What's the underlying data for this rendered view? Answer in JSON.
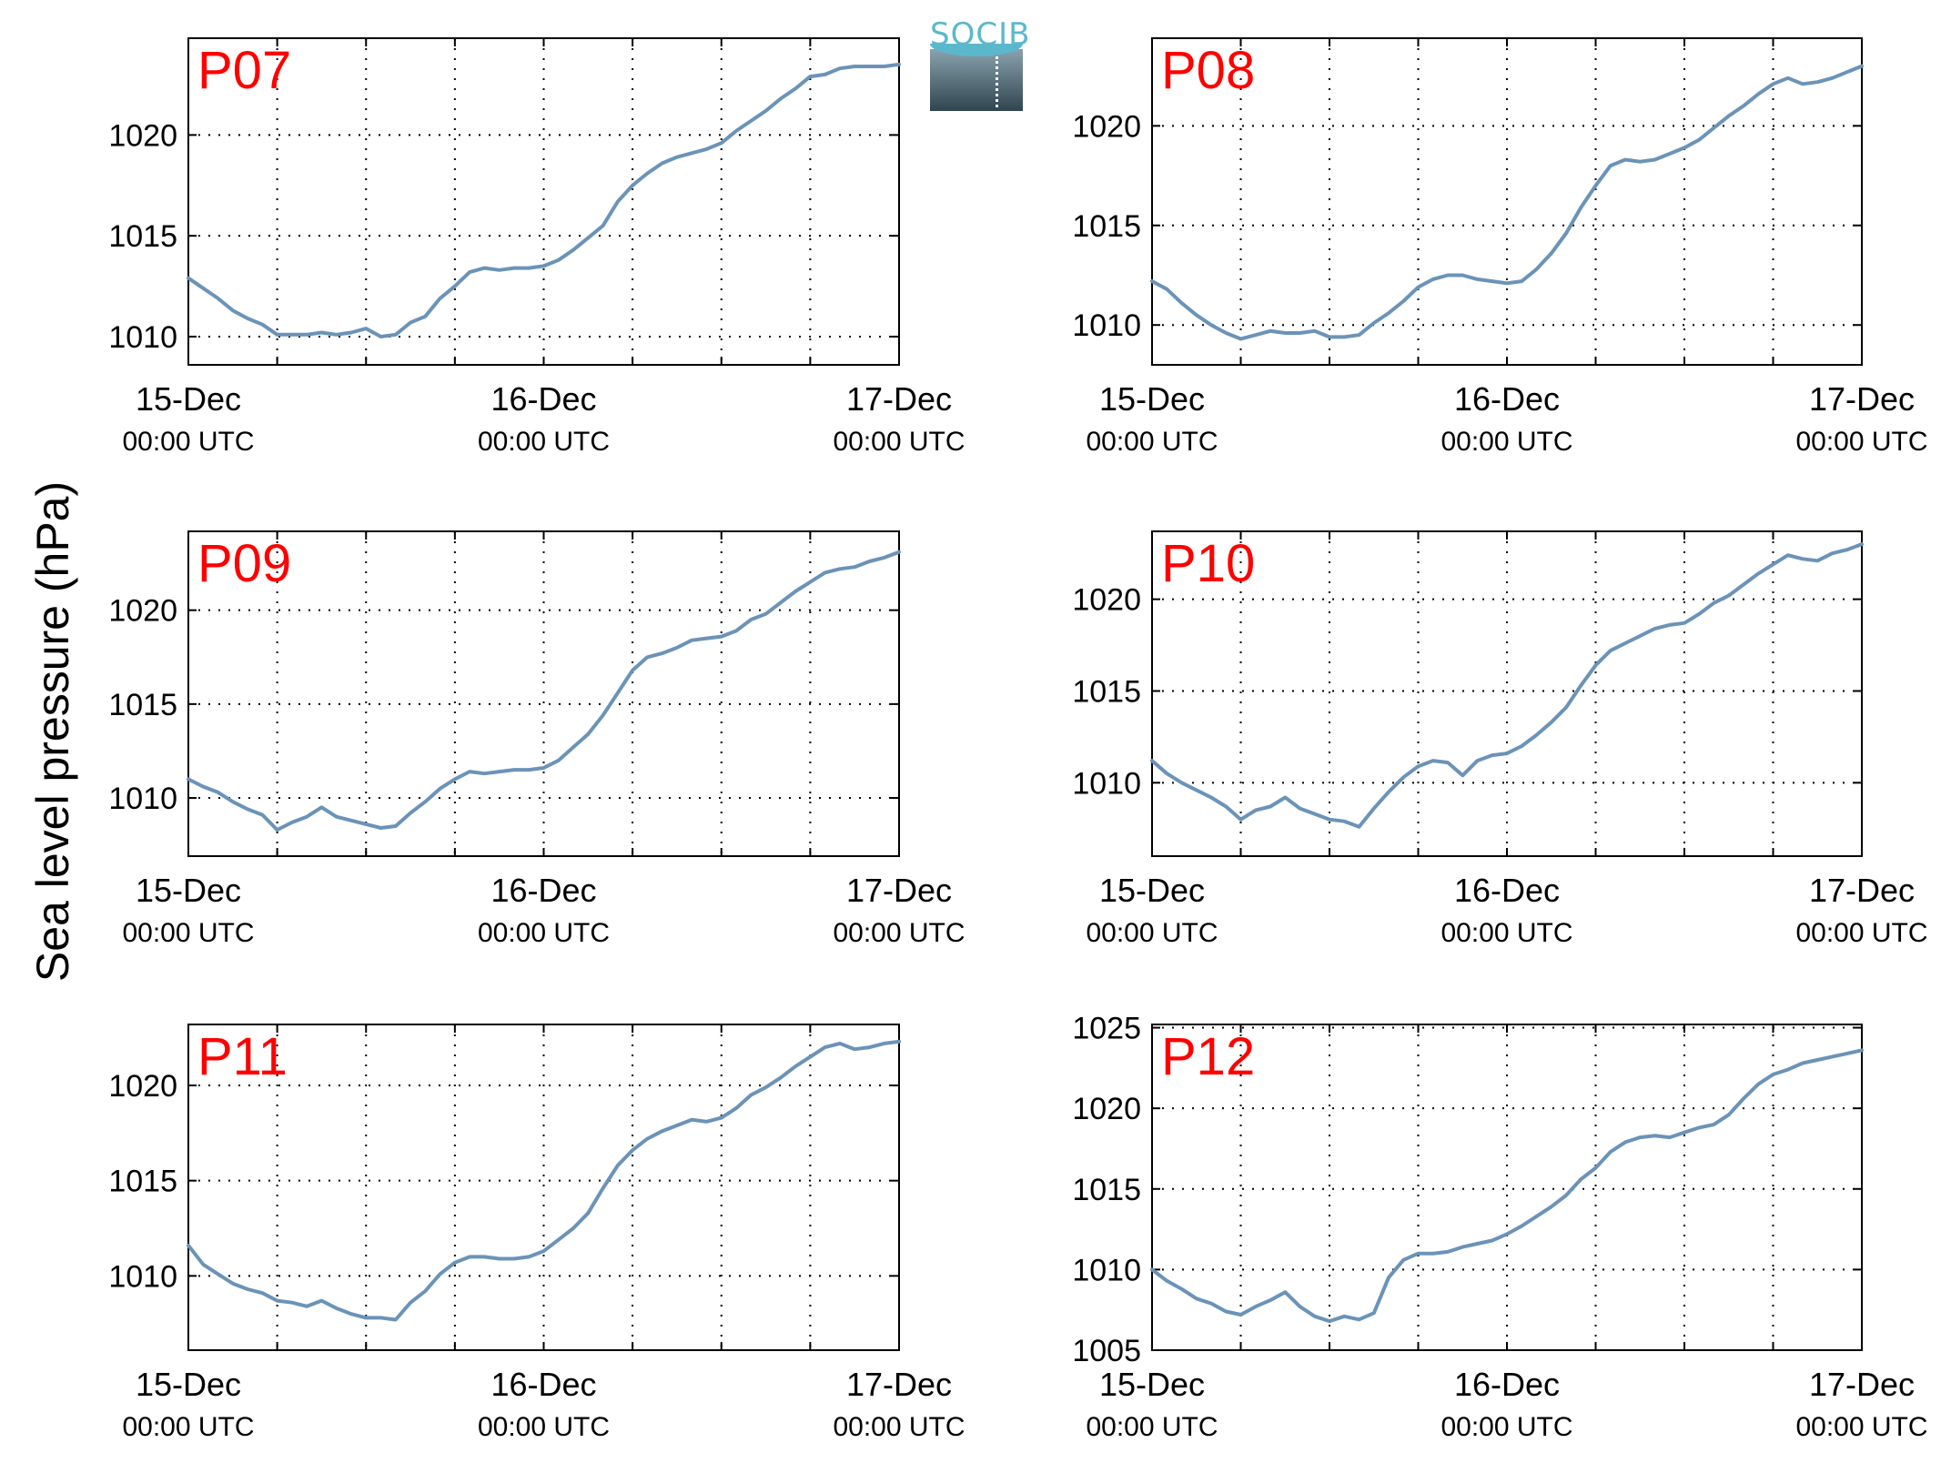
{
  "y_axis_title": "Sea level pressure (hPa)",
  "logo_text": "SOCIB",
  "colors": {
    "line": "#6b93b8",
    "panel_label": "#ff0000",
    "grid": "#000000"
  },
  "chart_data": [
    {
      "type": "line",
      "label": "P07",
      "ylim": [
        1008.6,
        1024.8
      ],
      "yticks": [
        1010,
        1015,
        1020
      ],
      "xticks": [
        {
          "x": 0,
          "top": "15-Dec",
          "bottom": "00:00 UTC"
        },
        {
          "x": 24,
          "top": "16-Dec",
          "bottom": "00:00 UTC"
        },
        {
          "x": 48,
          "top": "17-Dec",
          "bottom": "00:00 UTC"
        }
      ],
      "xlim": [
        0,
        48
      ],
      "grid": true,
      "x": [
        0,
        1,
        2,
        3,
        4,
        5,
        6,
        7,
        8,
        9,
        10,
        11,
        12,
        13,
        14,
        15,
        16,
        17,
        18,
        19,
        20,
        21,
        22,
        23,
        24,
        25,
        26,
        27,
        28,
        29,
        30,
        31,
        32,
        33,
        34,
        35,
        36,
        37,
        38,
        39,
        40,
        41,
        42,
        43,
        44,
        45,
        46,
        47,
        48
      ],
      "values": [
        1012.9,
        1012.4,
        1011.9,
        1011.3,
        1010.9,
        1010.6,
        1010.1,
        1010.1,
        1010.1,
        1010.2,
        1010.1,
        1010.2,
        1010.4,
        1010.0,
        1010.1,
        1010.7,
        1011.0,
        1011.9,
        1012.5,
        1013.2,
        1013.4,
        1013.3,
        1013.4,
        1013.4,
        1013.5,
        1013.8,
        1014.3,
        1014.9,
        1015.5,
        1016.7,
        1017.5,
        1018.1,
        1018.6,
        1018.9,
        1019.1,
        1019.3,
        1019.6,
        1020.2,
        1020.7,
        1021.2,
        1021.8,
        1022.3,
        1022.9,
        1023.0,
        1023.3,
        1023.4,
        1023.4,
        1023.4,
        1023.5
      ]
    },
    {
      "type": "line",
      "label": "P08",
      "ylim": [
        1008.0,
        1024.4
      ],
      "yticks": [
        1010,
        1015,
        1020
      ],
      "xticks": [
        {
          "x": 0,
          "top": "15-Dec",
          "bottom": "00:00 UTC"
        },
        {
          "x": 24,
          "top": "16-Dec",
          "bottom": "00:00 UTC"
        },
        {
          "x": 48,
          "top": "17-Dec",
          "bottom": "00:00 UTC"
        }
      ],
      "xlim": [
        0,
        48
      ],
      "grid": true,
      "x": [
        0,
        1,
        2,
        3,
        4,
        5,
        6,
        7,
        8,
        9,
        10,
        11,
        12,
        13,
        14,
        15,
        16,
        17,
        18,
        19,
        20,
        21,
        22,
        23,
        24,
        25,
        26,
        27,
        28,
        29,
        30,
        31,
        32,
        33,
        34,
        35,
        36,
        37,
        38,
        39,
        40,
        41,
        42,
        43,
        44,
        45,
        46,
        47,
        48
      ],
      "values": [
        1012.2,
        1011.8,
        1011.1,
        1010.5,
        1010.0,
        1009.6,
        1009.3,
        1009.5,
        1009.7,
        1009.6,
        1009.6,
        1009.7,
        1009.4,
        1009.4,
        1009.5,
        1010.1,
        1010.6,
        1011.2,
        1011.9,
        1012.3,
        1012.5,
        1012.5,
        1012.3,
        1012.2,
        1012.1,
        1012.2,
        1012.8,
        1013.6,
        1014.6,
        1015.9,
        1017.0,
        1018.0,
        1018.3,
        1018.2,
        1018.3,
        1018.6,
        1018.9,
        1019.3,
        1019.9,
        1020.5,
        1021.0,
        1021.6,
        1022.1,
        1022.4,
        1022.1,
        1022.2,
        1022.4,
        1022.7,
        1023.0
      ]
    },
    {
      "type": "line",
      "label": "P09",
      "ylim": [
        1006.9,
        1024.2
      ],
      "yticks": [
        1010,
        1015,
        1020
      ],
      "xticks": [
        {
          "x": 0,
          "top": "15-Dec",
          "bottom": "00:00 UTC"
        },
        {
          "x": 24,
          "top": "16-Dec",
          "bottom": "00:00 UTC"
        },
        {
          "x": 48,
          "top": "17-Dec",
          "bottom": "00:00 UTC"
        }
      ],
      "xlim": [
        0,
        48
      ],
      "grid": true,
      "x": [
        0,
        1,
        2,
        3,
        4,
        5,
        6,
        7,
        8,
        9,
        10,
        11,
        12,
        13,
        14,
        15,
        16,
        17,
        18,
        19,
        20,
        21,
        22,
        23,
        24,
        25,
        26,
        27,
        28,
        29,
        30,
        31,
        32,
        33,
        34,
        35,
        36,
        37,
        38,
        39,
        40,
        41,
        42,
        43,
        44,
        45,
        46,
        47,
        48
      ],
      "values": [
        1011.0,
        1010.6,
        1010.3,
        1009.8,
        1009.4,
        1009.1,
        1008.3,
        1008.7,
        1009.0,
        1009.5,
        1009.0,
        1008.8,
        1008.6,
        1008.4,
        1008.5,
        1009.2,
        1009.8,
        1010.5,
        1011.0,
        1011.4,
        1011.3,
        1011.4,
        1011.5,
        1011.5,
        1011.6,
        1012.0,
        1012.7,
        1013.4,
        1014.4,
        1015.6,
        1016.8,
        1017.5,
        1017.7,
        1018.0,
        1018.4,
        1018.5,
        1018.6,
        1018.9,
        1019.5,
        1019.8,
        1020.4,
        1021.0,
        1021.5,
        1022.0,
        1022.2,
        1022.3,
        1022.6,
        1022.8,
        1023.1
      ]
    },
    {
      "type": "line",
      "label": "P10",
      "ylim": [
        1006.0,
        1023.7
      ],
      "yticks": [
        1010,
        1015,
        1020
      ],
      "xticks": [
        {
          "x": 0,
          "top": "15-Dec",
          "bottom": "00:00 UTC"
        },
        {
          "x": 24,
          "top": "16-Dec",
          "bottom": "00:00 UTC"
        },
        {
          "x": 48,
          "top": "17-Dec",
          "bottom": "00:00 UTC"
        }
      ],
      "xlim": [
        0,
        48
      ],
      "grid": true,
      "x": [
        0,
        1,
        2,
        3,
        4,
        5,
        6,
        7,
        8,
        9,
        10,
        11,
        12,
        13,
        14,
        15,
        16,
        17,
        18,
        19,
        20,
        21,
        22,
        23,
        24,
        25,
        26,
        27,
        28,
        29,
        30,
        31,
        32,
        33,
        34,
        35,
        36,
        37,
        38,
        39,
        40,
        41,
        42,
        43,
        44,
        45,
        46,
        47,
        48
      ],
      "values": [
        1011.2,
        1010.5,
        1010.0,
        1009.6,
        1009.2,
        1008.7,
        1008.0,
        1008.5,
        1008.7,
        1009.2,
        1008.6,
        1008.3,
        1008.0,
        1007.9,
        1007.6,
        1008.6,
        1009.5,
        1010.3,
        1010.9,
        1011.2,
        1011.1,
        1010.4,
        1011.2,
        1011.5,
        1011.6,
        1012.0,
        1012.6,
        1013.3,
        1014.1,
        1015.3,
        1016.4,
        1017.2,
        1017.6,
        1018.0,
        1018.4,
        1018.6,
        1018.7,
        1019.2,
        1019.8,
        1020.2,
        1020.8,
        1021.4,
        1021.9,
        1022.4,
        1022.2,
        1022.1,
        1022.5,
        1022.7,
        1023.0
      ]
    },
    {
      "type": "line",
      "label": "P11",
      "ylim": [
        1006.1,
        1023.2
      ],
      "yticks": [
        1010,
        1015,
        1020
      ],
      "xticks": [
        {
          "x": 0,
          "top": "15-Dec",
          "bottom": "00:00 UTC"
        },
        {
          "x": 24,
          "top": "16-Dec",
          "bottom": "00:00 UTC"
        },
        {
          "x": 48,
          "top": "17-Dec",
          "bottom": "00:00 UTC"
        }
      ],
      "xlim": [
        0,
        48
      ],
      "grid": true,
      "x": [
        0,
        1,
        2,
        3,
        4,
        5,
        6,
        7,
        8,
        9,
        10,
        11,
        12,
        13,
        14,
        15,
        16,
        17,
        18,
        19,
        20,
        21,
        22,
        23,
        24,
        25,
        26,
        27,
        28,
        29,
        30,
        31,
        32,
        33,
        34,
        35,
        36,
        37,
        38,
        39,
        40,
        41,
        42,
        43,
        44,
        45,
        46,
        47,
        48
      ],
      "values": [
        1011.6,
        1010.6,
        1010.1,
        1009.6,
        1009.3,
        1009.1,
        1008.7,
        1008.6,
        1008.4,
        1008.7,
        1008.3,
        1008.0,
        1007.8,
        1007.8,
        1007.7,
        1008.6,
        1009.2,
        1010.1,
        1010.7,
        1011.0,
        1011.0,
        1010.9,
        1010.9,
        1011.0,
        1011.3,
        1011.9,
        1012.5,
        1013.3,
        1014.6,
        1015.8,
        1016.6,
        1017.2,
        1017.6,
        1017.9,
        1018.2,
        1018.1,
        1018.3,
        1018.8,
        1019.5,
        1019.9,
        1020.4,
        1021.0,
        1021.5,
        1022.0,
        1022.2,
        1021.9,
        1022.0,
        1022.2,
        1022.3
      ]
    },
    {
      "type": "line",
      "label": "P12",
      "ylim": [
        1005.0,
        1025.2
      ],
      "yticks": [
        1005,
        1010,
        1015,
        1020,
        1025
      ],
      "xticks": [
        {
          "x": 0,
          "top": "15-Dec",
          "bottom": "00:00 UTC"
        },
        {
          "x": 24,
          "top": "16-Dec",
          "bottom": "00:00 UTC"
        },
        {
          "x": 48,
          "top": "17-Dec",
          "bottom": "00:00 UTC"
        }
      ],
      "xlim": [
        0,
        48
      ],
      "grid": true,
      "x": [
        0,
        1,
        2,
        3,
        4,
        5,
        6,
        7,
        8,
        9,
        10,
        11,
        12,
        13,
        14,
        15,
        16,
        17,
        18,
        19,
        20,
        21,
        22,
        23,
        24,
        25,
        26,
        27,
        28,
        29,
        30,
        31,
        32,
        33,
        34,
        35,
        36,
        37,
        38,
        39,
        40,
        41,
        42,
        43,
        44,
        45,
        46,
        47,
        48
      ],
      "values": [
        1010.0,
        1009.3,
        1008.8,
        1008.2,
        1007.9,
        1007.4,
        1007.2,
        1007.7,
        1008.1,
        1008.6,
        1007.7,
        1007.1,
        1006.8,
        1007.1,
        1006.9,
        1007.3,
        1009.5,
        1010.6,
        1011.0,
        1011.0,
        1011.1,
        1011.4,
        1011.6,
        1011.8,
        1012.2,
        1012.7,
        1013.3,
        1013.9,
        1014.6,
        1015.6,
        1016.3,
        1017.3,
        1017.9,
        1018.2,
        1018.3,
        1018.2,
        1018.5,
        1018.8,
        1019.0,
        1019.6,
        1020.6,
        1021.5,
        1022.1,
        1022.4,
        1022.8,
        1023.0,
        1023.2,
        1023.4,
        1023.6
      ]
    }
  ]
}
